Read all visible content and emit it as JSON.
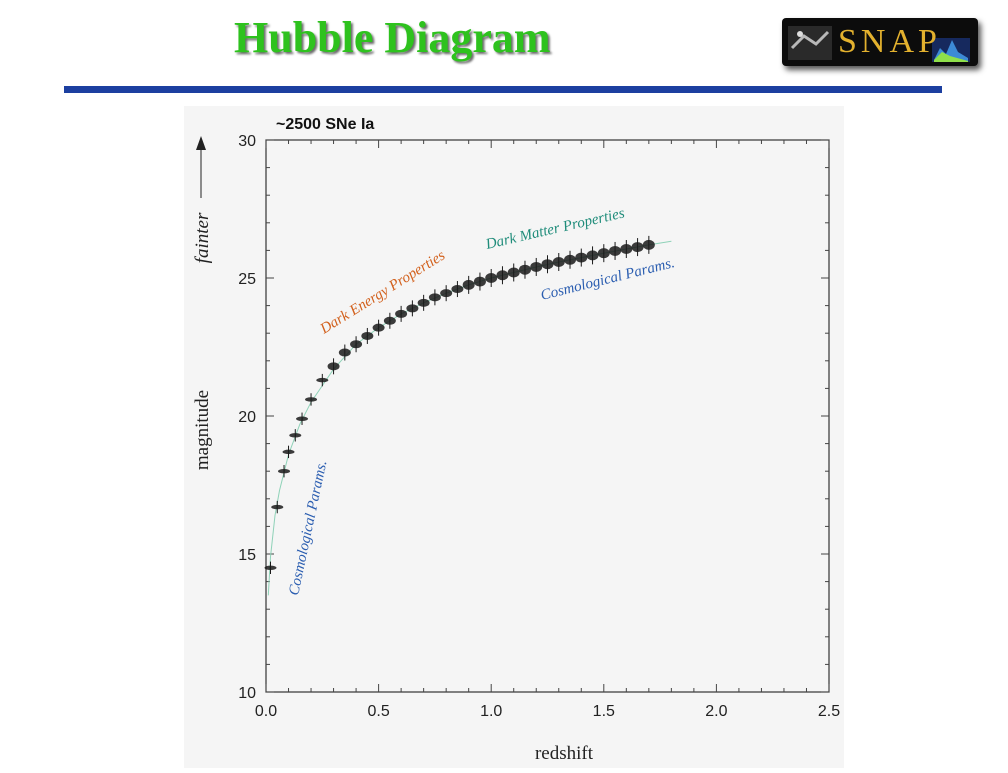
{
  "slide": {
    "title": "Hubble Diagram",
    "logo_text": "SNAP",
    "rule_color": "#1c3fa0",
    "title_color": "#2ec21e"
  },
  "chart_data": {
    "type": "scatter",
    "title": "~2500 SNe Ia",
    "xlabel": "redshift",
    "ylabel": "magnitude",
    "ylabel_arrow_text": "fainter",
    "xlim": [
      0,
      2.5
    ],
    "ylim": [
      10,
      30
    ],
    "xticks": [
      "0.0",
      "0.5",
      "1.0",
      "1.5",
      "2.0",
      "2.5"
    ],
    "yticks": [
      "10",
      "15",
      "20",
      "25",
      "30"
    ],
    "grid": false,
    "series": [
      {
        "x": [
          0.02,
          0.05,
          0.08,
          0.1,
          0.13,
          0.16,
          0.2,
          0.25,
          0.3,
          0.35,
          0.4,
          0.45,
          0.5,
          0.55,
          0.6,
          0.65,
          0.7,
          0.75,
          0.8,
          0.85,
          0.9,
          0.95,
          1.0,
          1.05,
          1.1,
          1.15,
          1.2,
          1.25,
          1.3,
          1.35,
          1.4,
          1.45,
          1.5,
          1.55,
          1.6,
          1.65,
          1.7
        ],
        "y": [
          14.5,
          16.7,
          18.0,
          18.7,
          19.3,
          19.9,
          20.6,
          21.3,
          21.8,
          22.3,
          22.6,
          22.9,
          23.2,
          23.45,
          23.7,
          23.9,
          24.1,
          24.3,
          24.45,
          24.6,
          24.75,
          24.87,
          25.0,
          25.1,
          25.2,
          25.3,
          25.4,
          25.5,
          25.58,
          25.66,
          25.74,
          25.82,
          25.9,
          25.98,
          26.05,
          26.12,
          26.2
        ],
        "color": "#1a1a1a"
      }
    ],
    "model_curve": {
      "x": [
        0.01,
        0.02,
        0.04,
        0.06,
        0.1,
        0.15,
        0.2,
        0.3,
        0.4,
        0.5,
        0.6,
        0.7,
        0.8,
        0.9,
        1.0,
        1.1,
        1.2,
        1.3,
        1.4,
        1.5,
        1.6,
        1.7,
        1.8
      ],
      "y": [
        13.5,
        14.9,
        16.4,
        17.3,
        18.6,
        19.7,
        20.5,
        21.7,
        22.6,
        23.2,
        23.7,
        24.1,
        24.45,
        24.75,
        25.0,
        25.2,
        25.4,
        25.58,
        25.74,
        25.9,
        26.05,
        26.2,
        26.33
      ],
      "color": "#8fd2b8"
    },
    "annotations": [
      {
        "text": "Dark Energy Properties",
        "color": "#d2601c"
      },
      {
        "text": "Dark Matter Properties",
        "color": "#1f8c7a"
      },
      {
        "text": "Cosmological Params.",
        "color": "#2a5db0"
      },
      {
        "text": "Cosmological Params.",
        "color": "#2a5db0"
      }
    ]
  }
}
